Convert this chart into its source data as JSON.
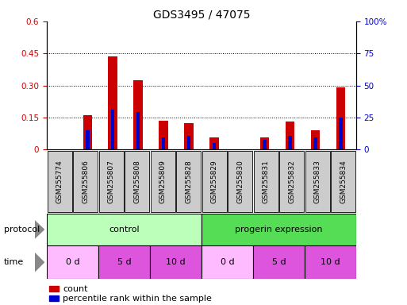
{
  "title": "GDS3495 / 47075",
  "samples": [
    "GSM255774",
    "GSM255806",
    "GSM255807",
    "GSM255808",
    "GSM255809",
    "GSM255828",
    "GSM255829",
    "GSM255830",
    "GSM255831",
    "GSM255832",
    "GSM255833",
    "GSM255834"
  ],
  "count_values": [
    0.0,
    0.16,
    0.435,
    0.325,
    0.135,
    0.125,
    0.055,
    0.002,
    0.055,
    0.13,
    0.09,
    0.29
  ],
  "percentile_values": [
    0.0,
    0.09,
    0.185,
    0.175,
    0.055,
    0.065,
    0.03,
    0.002,
    0.045,
    0.065,
    0.055,
    0.15
  ],
  "ylim_left": [
    0,
    0.6
  ],
  "ylim_right": [
    0,
    100
  ],
  "yticks_left": [
    0,
    0.15,
    0.3,
    0.45,
    0.6
  ],
  "yticks_right": [
    0,
    25,
    50,
    75,
    100
  ],
  "ytick_labels_left": [
    "0",
    "0.15",
    "0.30",
    "0.45",
    "0.6"
  ],
  "ytick_labels_right": [
    "0",
    "25",
    "50",
    "75",
    "100%"
  ],
  "color_red": "#cc0000",
  "color_blue": "#0000cc",
  "bar_width": 0.35,
  "blue_bar_width": 0.15,
  "protocol_labels": [
    "control",
    "progerin expression"
  ],
  "protocol_color_light": "#bbffbb",
  "protocol_color_dark": "#55dd55",
  "time_labels": [
    "0 d",
    "5 d",
    "10 d",
    "0 d",
    "5 d",
    "10 d"
  ],
  "time_color_light": "#ffbbff",
  "time_color_dark": "#dd55dd",
  "sample_box_color": "#cccccc",
  "legend_count_label": "count",
  "legend_percentile_label": "percentile rank within the sample",
  "title_fontsize": 10,
  "tick_fontsize": 7.5,
  "label_fontsize": 8,
  "sample_fontsize": 6.5,
  "arrow_color": "#888888"
}
